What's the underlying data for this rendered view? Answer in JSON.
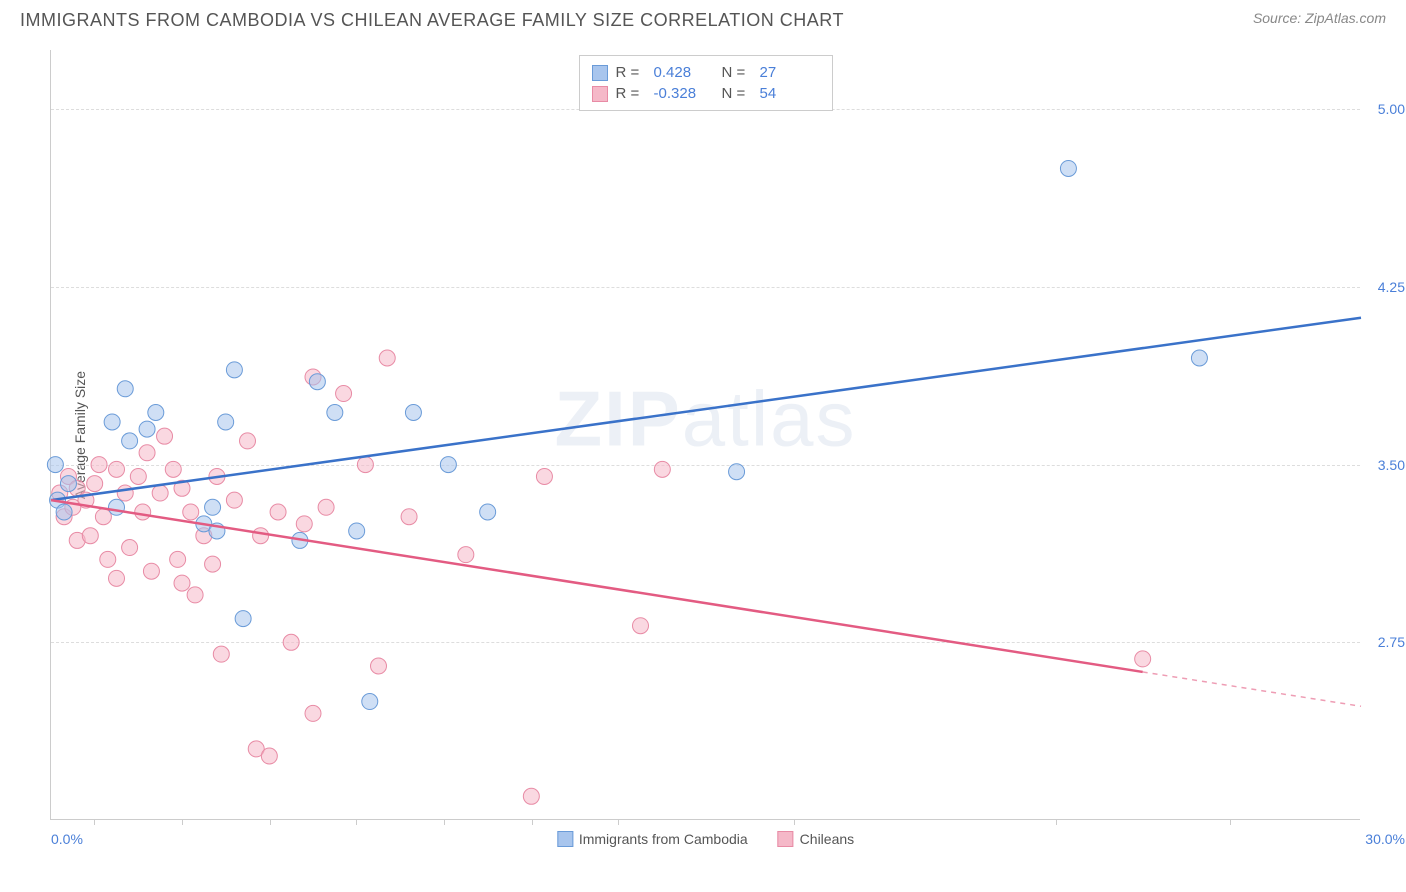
{
  "header": {
    "title": "IMMIGRANTS FROM CAMBODIA VS CHILEAN AVERAGE FAMILY SIZE CORRELATION CHART",
    "source_prefix": "Source: ",
    "source_name": "ZipAtlas.com"
  },
  "watermark": {
    "bold": "ZIP",
    "thin": "atlas"
  },
  "chart": {
    "type": "scatter",
    "y_axis_title": "Average Family Size",
    "xlim": [
      0,
      30
    ],
    "ylim": [
      2.0,
      5.25
    ],
    "x_min_label": "0.0%",
    "x_max_label": "30.0%",
    "y_ticks": [
      2.75,
      3.5,
      4.25,
      5.0
    ],
    "y_tick_labels": [
      "2.75",
      "3.50",
      "4.25",
      "5.00"
    ],
    "x_tick_positions_pct": [
      3.3,
      10,
      16.7,
      23.3,
      30,
      36.7,
      43.3,
      56.7,
      76.7,
      90
    ],
    "grid_color": "#dddddd",
    "axis_color": "#cccccc",
    "background_color": "#ffffff",
    "label_color": "#4a7fd8",
    "text_color": "#555555",
    "marker_radius": 8,
    "marker_opacity": 0.55,
    "line_width": 2.5,
    "series": [
      {
        "name": "Immigrants from Cambodia",
        "color_fill": "#a8c5ed",
        "color_stroke": "#6a9bd8",
        "line_color": "#3a72c9",
        "r_value": "0.428",
        "n_value": "27",
        "trend": {
          "x1": 0,
          "y1": 3.35,
          "x2": 30,
          "y2": 4.12,
          "dash_from_x": null
        },
        "points": [
          [
            0.1,
            3.5
          ],
          [
            0.15,
            3.35
          ],
          [
            0.3,
            3.3
          ],
          [
            1.4,
            3.68
          ],
          [
            1.5,
            3.32
          ],
          [
            1.7,
            3.82
          ],
          [
            1.8,
            3.6
          ],
          [
            2.2,
            3.65
          ],
          [
            2.4,
            3.72
          ],
          [
            3.5,
            3.25
          ],
          [
            3.7,
            3.32
          ],
          [
            3.8,
            3.22
          ],
          [
            4.0,
            3.68
          ],
          [
            4.2,
            3.9
          ],
          [
            4.4,
            2.85
          ],
          [
            5.7,
            3.18
          ],
          [
            6.1,
            3.85
          ],
          [
            6.5,
            3.72
          ],
          [
            7.0,
            3.22
          ],
          [
            7.3,
            2.5
          ],
          [
            8.3,
            3.72
          ],
          [
            9.1,
            3.5
          ],
          [
            10.0,
            3.3
          ],
          [
            15.7,
            3.47
          ],
          [
            23.3,
            4.75
          ],
          [
            26.3,
            3.95
          ],
          [
            0.4,
            3.42
          ]
        ]
      },
      {
        "name": "Chileans",
        "color_fill": "#f5b8c8",
        "color_stroke": "#e88ba5",
        "line_color": "#e35b82",
        "r_value": "-0.328",
        "n_value": "54",
        "trend": {
          "x1": 0,
          "y1": 3.35,
          "x2": 30,
          "y2": 2.48,
          "dash_from_x": 25.0
        },
        "points": [
          [
            0.2,
            3.38
          ],
          [
            0.3,
            3.28
          ],
          [
            0.4,
            3.45
          ],
          [
            0.5,
            3.32
          ],
          [
            0.6,
            3.18
          ],
          [
            0.6,
            3.4
          ],
          [
            0.8,
            3.35
          ],
          [
            0.9,
            3.2
          ],
          [
            1.0,
            3.42
          ],
          [
            1.1,
            3.5
          ],
          [
            1.2,
            3.28
          ],
          [
            1.3,
            3.1
          ],
          [
            1.5,
            3.02
          ],
          [
            1.5,
            3.48
          ],
          [
            1.7,
            3.38
          ],
          [
            1.8,
            3.15
          ],
          [
            2.0,
            3.45
          ],
          [
            2.1,
            3.3
          ],
          [
            2.2,
            3.55
          ],
          [
            2.3,
            3.05
          ],
          [
            2.5,
            3.38
          ],
          [
            2.6,
            3.62
          ],
          [
            2.8,
            3.48
          ],
          [
            2.9,
            3.1
          ],
          [
            3.0,
            3.4
          ],
          [
            3.0,
            3.0
          ],
          [
            3.2,
            3.3
          ],
          [
            3.3,
            2.95
          ],
          [
            3.5,
            3.2
          ],
          [
            3.7,
            3.08
          ],
          [
            3.8,
            3.45
          ],
          [
            3.9,
            2.7
          ],
          [
            4.2,
            3.35
          ],
          [
            4.5,
            3.6
          ],
          [
            4.7,
            2.3
          ],
          [
            4.8,
            3.2
          ],
          [
            5.0,
            2.27
          ],
          [
            5.2,
            3.3
          ],
          [
            5.5,
            2.75
          ],
          [
            5.8,
            3.25
          ],
          [
            6.0,
            2.45
          ],
          [
            6.3,
            3.32
          ],
          [
            6.7,
            3.8
          ],
          [
            7.2,
            3.5
          ],
          [
            7.5,
            2.65
          ],
          [
            7.7,
            3.95
          ],
          [
            6.0,
            3.87
          ],
          [
            8.2,
            3.28
          ],
          [
            9.5,
            3.12
          ],
          [
            11.3,
            3.45
          ],
          [
            13.5,
            2.82
          ],
          [
            14.0,
            3.48
          ],
          [
            11.0,
            2.1
          ],
          [
            25.0,
            2.68
          ]
        ]
      }
    ]
  },
  "legend": {
    "series1_label": "Immigrants from Cambodia",
    "series2_label": "Chileans"
  },
  "stat_box": {
    "r_label": "R  =",
    "n_label": "N  ="
  }
}
